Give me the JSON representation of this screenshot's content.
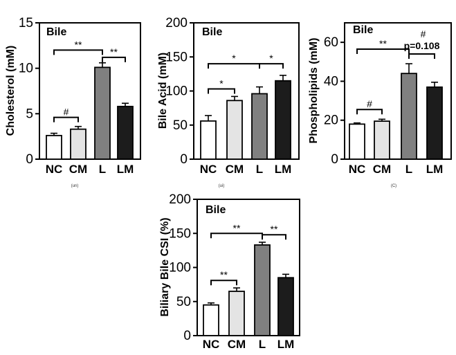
{
  "chart_data": [
    {
      "id": "cholesterol",
      "type": "bar",
      "title": "Bile",
      "ylabel": "Cholesterol (mM)",
      "xlabel": "",
      "ylim": [
        0,
        15
      ],
      "yticks": [
        "0",
        "5",
        "10",
        "15"
      ],
      "yticks_values": [
        0,
        5,
        10,
        15
      ],
      "categories": [
        "NC",
        "CM",
        "L",
        "LM"
      ],
      "values": [
        2.6,
        3.3,
        10.1,
        5.8
      ],
      "errors": [
        0.25,
        0.3,
        0.5,
        0.35
      ],
      "colors": [
        "#ffffff",
        "#e4e4e4",
        "#808080",
        "#1c1c1c"
      ],
      "caption": "(un)",
      "annotations": [
        {
          "from": 0,
          "to": 1,
          "text": "#",
          "level": 4.6
        },
        {
          "from": 0,
          "to": 2,
          "text": "**",
          "level": 12.0
        },
        {
          "from": 2,
          "to": 3,
          "text": "**",
          "level": 11.2
        }
      ]
    },
    {
      "id": "bile-acid",
      "type": "bar",
      "title": "Bile",
      "ylabel": "Bile Acid (mM)",
      "xlabel": "",
      "ylim": [
        0,
        200
      ],
      "yticks": [
        "0",
        "50",
        "100",
        "150",
        "200"
      ],
      "yticks_values": [
        0,
        50,
        100,
        150,
        200
      ],
      "categories": [
        "NC",
        "CM",
        "L",
        "LM"
      ],
      "values": [
        56,
        86,
        96,
        115
      ],
      "errors": [
        8,
        6,
        10,
        8
      ],
      "colors": [
        "#ffffff",
        "#e4e4e4",
        "#808080",
        "#1c1c1c"
      ],
      "caption": "(ui)",
      "annotations": [
        {
          "from": 0,
          "to": 1,
          "text": "*",
          "level": 103
        },
        {
          "from": 0,
          "to": 2,
          "text": "*",
          "level": 140
        },
        {
          "from": 2,
          "to": 3,
          "text": "*",
          "level": 140
        }
      ]
    },
    {
      "id": "phospholipids",
      "type": "bar",
      "title": "Bile",
      "ylabel": "Phospholipids (mM)",
      "xlabel": "",
      "ylim": [
        0,
        70
      ],
      "yticks": [
        "0",
        "20",
        "40",
        "60"
      ],
      "yticks_values": [
        0,
        20,
        40,
        60
      ],
      "categories": [
        "NC",
        "CM",
        "L",
        "LM"
      ],
      "values": [
        18,
        19.5,
        44,
        37
      ],
      "errors": [
        0.6,
        1.0,
        5,
        2.5
      ],
      "colors": [
        "#ffffff",
        "#e4e4e4",
        "#808080",
        "#1c1c1c"
      ],
      "caption": "(C)",
      "annotations": [
        {
          "from": 0,
          "to": 1,
          "text": "#",
          "level": 25.5
        },
        {
          "from": 0,
          "to": 2,
          "text": "**",
          "level": 56.5
        },
        {
          "from": 2,
          "to": 3,
          "text": "# p=0.108",
          "level": 54
        }
      ]
    },
    {
      "id": "csi",
      "type": "bar",
      "title": "Bile",
      "ylabel": "Biliary Bile CSI (%)",
      "xlabel": "",
      "ylim": [
        0,
        200
      ],
      "yticks": [
        "0",
        "50",
        "100",
        "150",
        "200"
      ],
      "yticks_values": [
        0,
        50,
        100,
        150,
        200
      ],
      "categories": [
        "NC",
        "CM",
        "L",
        "LM"
      ],
      "values": [
        45,
        65,
        133,
        85
      ],
      "errors": [
        3,
        5,
        4,
        5
      ],
      "colors": [
        "#ffffff",
        "#e4e4e4",
        "#808080",
        "#1c1c1c"
      ],
      "caption": "",
      "annotations": [
        {
          "from": 0,
          "to": 1,
          "text": "**",
          "level": 81
        },
        {
          "from": 0,
          "to": 2,
          "text": "**",
          "level": 150
        },
        {
          "from": 2,
          "to": 3,
          "text": "**",
          "level": 148
        }
      ]
    }
  ]
}
